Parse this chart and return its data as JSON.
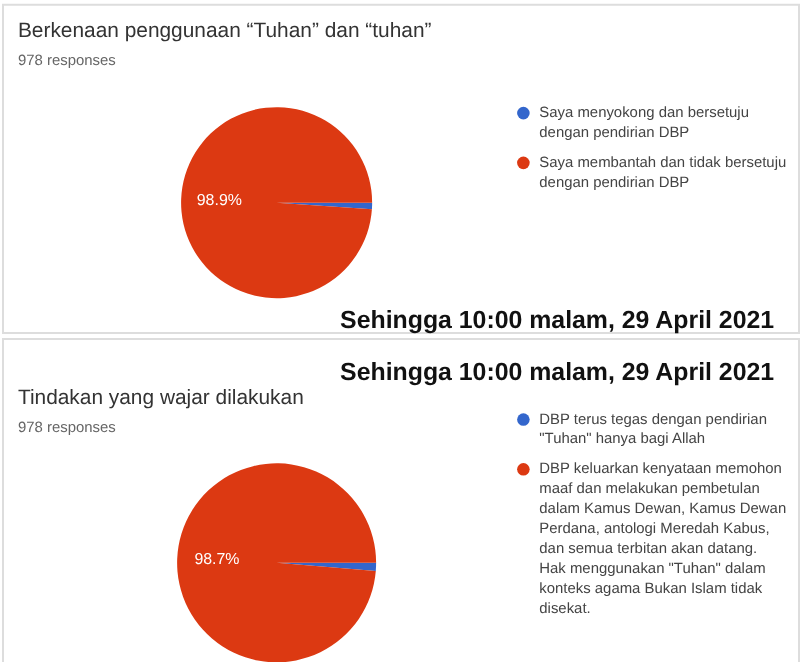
{
  "chart_data": [
    {
      "type": "pie",
      "title": "Berkenaan penggunaan “Tuhan” dan “tuhan”",
      "subtitle": "978 responses",
      "categories": [
        "Saya menyokong dan bersetuju dengan pendirian DBP",
        "Saya membantah dan tidak bersetuju dengan pendirian DBP"
      ],
      "values": [
        1.1,
        98.9
      ],
      "colors": [
        "#3366cc",
        "#dc3912"
      ],
      "value_labels": [
        null,
        "98.9%"
      ],
      "legend": "right",
      "annotations": [
        "Sehingga 10:00 malam, 29 April 2021"
      ]
    },
    {
      "type": "pie",
      "title": "Tindakan yang wajar dilakukan",
      "subtitle": "978 responses",
      "categories": [
        "DBP terus tegas dengan pendirian \"Tuhan\" hanya bagi Allah",
        "DBP keluarkan kenyataan memohon maaf dan melakukan pembetulan dalam Kamus Dewan, Kamus Dewan Perdana, antologi Meredah Kabus, dan semua terbitan akan datang. Hak menggunakan \"Tuhan\" dalam konteks agama Bukan Islam tidak disekat."
      ],
      "values": [
        1.3,
        98.7
      ],
      "colors": [
        "#3366cc",
        "#dc3912"
      ],
      "value_labels": [
        null,
        "98.7%"
      ],
      "legend": "right",
      "annotations": [
        "Sehingga 10:00 malam, 29 April 2021"
      ]
    }
  ]
}
